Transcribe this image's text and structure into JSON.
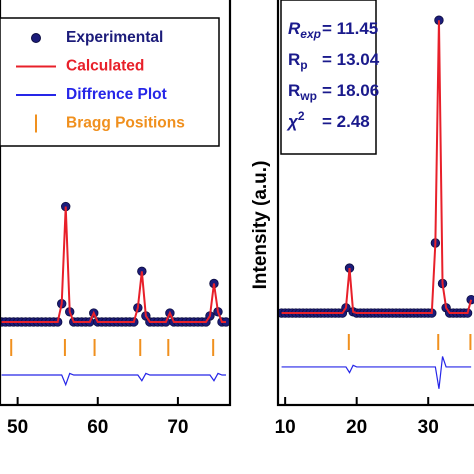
{
  "chart_data": [
    {
      "type": "line",
      "x": [
        48,
        48.5,
        49,
        49.5,
        50,
        50.5,
        51,
        51.5,
        52,
        52.5,
        53,
        53.5,
        54,
        54.5,
        55,
        55.5,
        56,
        56.5,
        57,
        57.5,
        58,
        58.5,
        59,
        59.5,
        60,
        60.5,
        61,
        61.5,
        62,
        62.5,
        63,
        63.5,
        64,
        64.5,
        65,
        65.5,
        66,
        66.5,
        67,
        67.5,
        68,
        68.5,
        69,
        69.5,
        70,
        70.5,
        71,
        71.5,
        72,
        72.5,
        73,
        73.5,
        74,
        74.5,
        75,
        75.5,
        76
      ],
      "series": [
        {
          "name": "Experimental",
          "color": "#1c1c7a",
          "style": "markers",
          "values": [
            20.5,
            20.5,
            20.5,
            20.5,
            20.5,
            20.5,
            20.5,
            20.5,
            20.5,
            20.5,
            20.5,
            20.5,
            20.5,
            20.5,
            20.5,
            25,
            49,
            23,
            20.5,
            20.5,
            20.5,
            20.5,
            20.5,
            22.7,
            20.5,
            20.5,
            20.5,
            20.5,
            20.5,
            20.5,
            20.5,
            20.5,
            20.5,
            20.5,
            24,
            33,
            22,
            20.5,
            20.5,
            20.5,
            20.5,
            20.5,
            22.7,
            20.5,
            20.5,
            20.5,
            20.5,
            20.5,
            20.5,
            20.5,
            20.5,
            20.5,
            22,
            30,
            23,
            20.5,
            20.5
          ]
        },
        {
          "name": "Calculated",
          "color": "#e8202a",
          "style": "line",
          "values": [
            20.5,
            20.5,
            20.5,
            20.5,
            20.5,
            20.5,
            20.5,
            20.5,
            20.5,
            20.5,
            20.5,
            20.5,
            20.5,
            20.5,
            20.5,
            25,
            49,
            23,
            20.5,
            20.5,
            20.5,
            20.5,
            20.5,
            22.7,
            20.5,
            20.5,
            20.5,
            20.5,
            20.5,
            20.5,
            20.5,
            20.5,
            20.5,
            20.5,
            24,
            33,
            22,
            20.5,
            20.5,
            20.5,
            20.5,
            20.5,
            22.7,
            20.5,
            20.5,
            20.5,
            20.5,
            20.5,
            20.5,
            20.5,
            20.5,
            20.5,
            22,
            30,
            23,
            20.5,
            20.5
          ]
        },
        {
          "name": "Diffrence Plot",
          "color": "#2626e8",
          "style": "line",
          "values": [
            7.4,
            7.4,
            7.4,
            7.4,
            7.4,
            7.4,
            7.4,
            7.4,
            7.4,
            7.4,
            7.4,
            7.4,
            7.4,
            7.4,
            7.4,
            7.4,
            5,
            7.8,
            7.4,
            7.4,
            7.4,
            7.4,
            7.4,
            7.4,
            7.4,
            7.4,
            7.4,
            7.4,
            7.4,
            7.4,
            7.4,
            7.4,
            7.4,
            7.4,
            7.4,
            6,
            7.8,
            7.4,
            7.4,
            7.4,
            7.4,
            7.4,
            7.4,
            7.4,
            7.4,
            7.4,
            7.4,
            7.4,
            7.4,
            7.4,
            7.4,
            7.4,
            7.4,
            6,
            7.8,
            7.4,
            7.4
          ]
        }
      ],
      "bragg": {
        "name": "Bragg Positions",
        "color": "#f0901e",
        "x": [
          49.2,
          55.9,
          59.6,
          65.3,
          68.8,
          74.4
        ]
      },
      "xlim": [
        47.8,
        76.5
      ],
      "xticks": [
        50,
        60,
        70
      ],
      "ylim": [
        0,
        100
      ]
    },
    {
      "type": "line",
      "y_label": "Intensity (a.u.)",
      "x": [
        9.5,
        10,
        10.5,
        11,
        11.5,
        12,
        12.5,
        13,
        13.5,
        14,
        14.5,
        15,
        15.5,
        16,
        16.5,
        17,
        17.5,
        18,
        18.5,
        19,
        19.5,
        20,
        20.5,
        21,
        21.5,
        22,
        22.5,
        23,
        23.5,
        24,
        24.5,
        25,
        25.5,
        26,
        26.5,
        27,
        27.5,
        28,
        28.5,
        29,
        29.5,
        30,
        30.5,
        31,
        31.5,
        32,
        32.5,
        33,
        33.5,
        34,
        34.5,
        35,
        35.5,
        36
      ],
      "series": [
        {
          "color": "#1c1c7a",
          "style": "markers",
          "values": [
            22.7,
            22.7,
            22.7,
            22.7,
            22.7,
            22.7,
            22.7,
            22.7,
            22.7,
            22.7,
            22.7,
            22.7,
            22.7,
            22.7,
            22.7,
            22.7,
            22.7,
            22.7,
            24,
            33.8,
            23,
            22.7,
            22.7,
            22.7,
            22.7,
            22.7,
            22.7,
            22.7,
            22.7,
            22.7,
            22.7,
            22.7,
            22.7,
            22.7,
            22.7,
            22.7,
            22.7,
            22.7,
            22.7,
            22.7,
            22.7,
            22.7,
            22.7,
            40,
            95,
            30,
            24,
            22.7,
            22.7,
            22.7,
            22.7,
            22.7,
            22.7,
            26
          ]
        },
        {
          "color": "#e8202a",
          "style": "line",
          "values": [
            22.7,
            22.7,
            22.7,
            22.7,
            22.7,
            22.7,
            22.7,
            22.7,
            22.7,
            22.7,
            22.7,
            22.7,
            22.7,
            22.7,
            22.7,
            22.7,
            22.7,
            22.7,
            24,
            33.8,
            23,
            22.7,
            22.7,
            22.7,
            22.7,
            22.7,
            22.7,
            22.7,
            22.7,
            22.7,
            22.7,
            22.7,
            22.7,
            22.7,
            22.7,
            22.7,
            22.7,
            22.7,
            22.7,
            22.7,
            22.7,
            22.7,
            22.7,
            40,
            95,
            30,
            24,
            22.7,
            22.7,
            22.7,
            22.7,
            22.7,
            22.7,
            26
          ]
        },
        {
          "color": "#2626e8",
          "style": "line",
          "values": [
            9.4,
            9.4,
            9.4,
            9.4,
            9.4,
            9.4,
            9.4,
            9.4,
            9.4,
            9.4,
            9.4,
            9.4,
            9.4,
            9.4,
            9.4,
            9.4,
            9.4,
            9.4,
            9.4,
            8,
            9.8,
            9.4,
            9.4,
            9.4,
            9.4,
            9.4,
            9.4,
            9.4,
            9.4,
            9.4,
            9.4,
            9.4,
            9.4,
            9.4,
            9.4,
            9.4,
            9.4,
            9.4,
            9.4,
            9.4,
            9.4,
            9.4,
            9.4,
            9.4,
            4,
            12,
            9.4,
            9.4,
            9.4,
            9.4,
            9.4,
            9.4,
            9.4,
            9.4
          ]
        }
      ],
      "bragg": {
        "color": "#f0901e",
        "x": [
          18.9,
          31.4,
          35.9
        ]
      },
      "annotations": [
        {
          "symbol": "R",
          "subscript": "exp",
          "text": "= 11.45"
        },
        {
          "symbol": "R",
          "subscript": "p",
          "text": "= 13.04"
        },
        {
          "symbol": "R",
          "subscript": "wp",
          "text": "= 18.06"
        },
        {
          "symbol": "χ",
          "superscript": "2",
          "text": "= 2.48"
        }
      ],
      "xlim": [
        9,
        36.4
      ],
      "xticks": [
        10,
        20,
        30
      ],
      "ylim": [
        0,
        100
      ]
    }
  ]
}
